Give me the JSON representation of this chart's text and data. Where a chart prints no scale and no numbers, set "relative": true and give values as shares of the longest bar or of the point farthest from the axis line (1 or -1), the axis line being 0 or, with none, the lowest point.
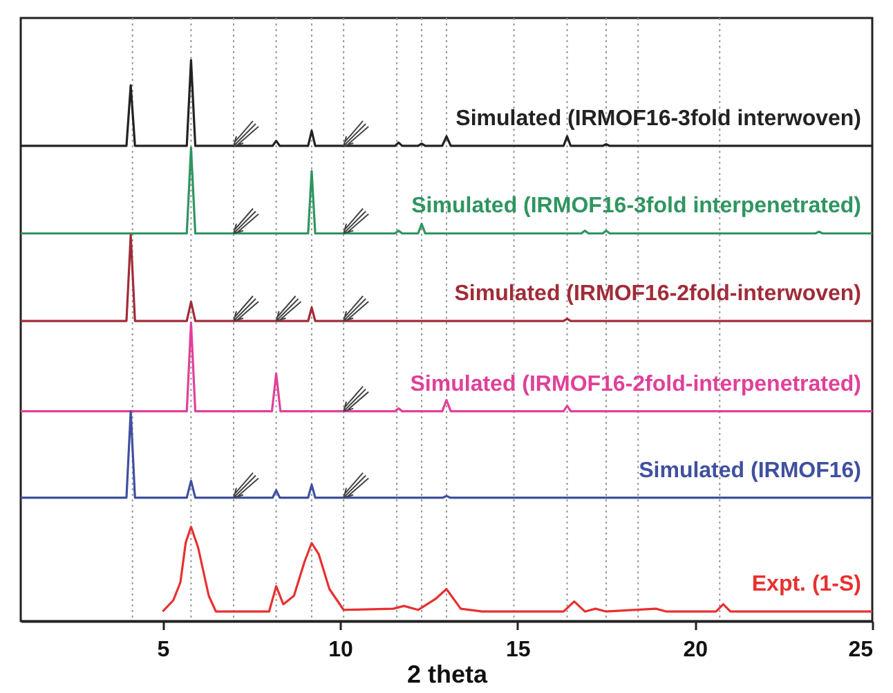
{
  "chart_data": {
    "type": "line",
    "relative": true,
    "xlabel": "2 theta",
    "xlim": [
      1,
      25
    ],
    "xticks": [
      5,
      10,
      15,
      20,
      25
    ],
    "marker": "none",
    "line_style": "solid",
    "series": [
      {
        "name": "Simulated (IRMOF16-3fold interwoven)",
        "color": "#222222",
        "x": [
          1,
          3.98,
          4.1,
          4.22,
          5.68,
          5.8,
          5.92,
          8.1,
          8.2,
          8.3,
          9.1,
          9.2,
          9.3,
          11.55,
          11.65,
          11.75,
          12.2,
          12.3,
          12.4,
          12.88,
          13.0,
          13.12,
          16.3,
          16.4,
          16.5,
          17.4,
          17.5,
          17.6,
          25
        ],
        "values": [
          0.847,
          0.847,
          0.955,
          0.847,
          0.847,
          1,
          0.847,
          0.847,
          0.856,
          0.847,
          0.847,
          0.874,
          0.847,
          0.847,
          0.853,
          0.847,
          0.847,
          0.851,
          0.847,
          0.847,
          0.864,
          0.847,
          0.847,
          0.864,
          0.847,
          0.847,
          0.85,
          0.847,
          0.847
        ]
      },
      {
        "name": "Simulated (IRMOF16-3fold interpenetrated)",
        "color": "#2f9560",
        "x": [
          1,
          5.68,
          5.8,
          5.92,
          9.1,
          9.2,
          9.3,
          11.55,
          11.65,
          11.75,
          12.2,
          12.3,
          12.4,
          16.8,
          16.9,
          17.0,
          17.4,
          17.5,
          17.6,
          23.4,
          23.5,
          23.6,
          25
        ],
        "values": [
          0.691,
          0.691,
          0.844,
          0.691,
          0.691,
          0.802,
          0.691,
          0.691,
          0.696,
          0.691,
          0.691,
          0.708,
          0.691,
          0.691,
          0.696,
          0.691,
          0.691,
          0.696,
          0.691,
          0.691,
          0.694,
          0.691,
          0.691
        ]
      },
      {
        "name": "Simulated (IRMOF16-2fold-interwoven)",
        "color": "#a02c38",
        "x": [
          1,
          3.98,
          4.1,
          4.22,
          5.68,
          5.8,
          5.92,
          9.1,
          9.2,
          9.3,
          16.3,
          16.4,
          16.5,
          25
        ],
        "values": [
          0.535,
          0.535,
          0.688,
          0.535,
          0.535,
          0.569,
          0.535,
          0.535,
          0.559,
          0.535,
          0.535,
          0.539,
          0.535,
          0.535
        ]
      },
      {
        "name": "Simulated (IRMOF16-2fold-interpenetrated)",
        "color": "#e0409a",
        "x": [
          1,
          5.68,
          5.8,
          5.92,
          8.08,
          8.2,
          8.32,
          11.55,
          11.65,
          11.75,
          12.88,
          13.0,
          13.12,
          16.3,
          16.4,
          16.5,
          25
        ],
        "values": [
          0.374,
          0.374,
          0.532,
          0.374,
          0.374,
          0.441,
          0.374,
          0.374,
          0.379,
          0.374,
          0.374,
          0.394,
          0.374,
          0.374,
          0.384,
          0.374,
          0.374
        ]
      },
      {
        "name": "Simulated (IRMOF16)",
        "color": "#4050a0",
        "x": [
          1,
          3.98,
          4.1,
          4.22,
          5.68,
          5.8,
          5.92,
          8.1,
          8.2,
          8.3,
          9.1,
          9.2,
          9.3,
          12.9,
          13.0,
          13.1,
          25
        ],
        "values": [
          0.22,
          0.22,
          0.374,
          0.22,
          0.22,
          0.25,
          0.22,
          0.22,
          0.233,
          0.22,
          0.22,
          0.243,
          0.22,
          0.22,
          0.223,
          0.22,
          0.22
        ]
      },
      {
        "name": "Expt. (1-S)",
        "color": "#e83030",
        "x": [
          5.0,
          5.3,
          5.5,
          5.65,
          5.8,
          6.0,
          6.3,
          6.5,
          8.0,
          8.2,
          8.4,
          8.7,
          9.0,
          9.2,
          9.4,
          9.7,
          10.1,
          11.5,
          11.8,
          12.2,
          12.7,
          13.0,
          13.4,
          14.0,
          16.3,
          16.6,
          16.9,
          17.2,
          17.5,
          18.9,
          19.2,
          20.6,
          20.8,
          21.0,
          25
        ],
        "values": [
          0.017,
          0.037,
          0.069,
          0.14,
          0.168,
          0.131,
          0.045,
          0.017,
          0.017,
          0.062,
          0.03,
          0.045,
          0.106,
          0.139,
          0.119,
          0.057,
          0.02,
          0.022,
          0.027,
          0.02,
          0.04,
          0.057,
          0.022,
          0.017,
          0.017,
          0.035,
          0.017,
          0.022,
          0.017,
          0.022,
          0.017,
          0.017,
          0.03,
          0.017,
          0.017
        ]
      }
    ],
    "ref_lines": [
      {
        "axis": "x",
        "value": 4.15,
        "color": "#999999",
        "line_style": "dotted"
      },
      {
        "axis": "x",
        "value": 5.8,
        "color": "#999999",
        "line_style": "dotted"
      },
      {
        "axis": "x",
        "value": 7.0,
        "color": "#999999",
        "line_style": "dotted"
      },
      {
        "axis": "x",
        "value": 8.2,
        "color": "#999999",
        "line_style": "dotted"
      },
      {
        "axis": "x",
        "value": 9.2,
        "color": "#999999",
        "line_style": "dotted"
      },
      {
        "axis": "x",
        "value": 10.1,
        "color": "#999999",
        "line_style": "dotted"
      },
      {
        "axis": "x",
        "value": 11.6,
        "color": "#999999",
        "line_style": "dotted"
      },
      {
        "axis": "x",
        "value": 12.3,
        "color": "#999999",
        "line_style": "dotted"
      },
      {
        "axis": "x",
        "value": 13.0,
        "color": "#999999",
        "line_style": "dotted"
      },
      {
        "axis": "x",
        "value": 14.9,
        "color": "#999999",
        "line_style": "dotted"
      },
      {
        "axis": "x",
        "value": 16.4,
        "color": "#999999",
        "line_style": "dotted"
      },
      {
        "axis": "x",
        "value": 17.5,
        "color": "#999999",
        "line_style": "dotted"
      },
      {
        "axis": "x",
        "value": 18.4,
        "color": "#999999",
        "line_style": "dotted"
      },
      {
        "axis": "x",
        "value": 20.7,
        "color": "#999999",
        "line_style": "dotted"
      }
    ]
  }
}
